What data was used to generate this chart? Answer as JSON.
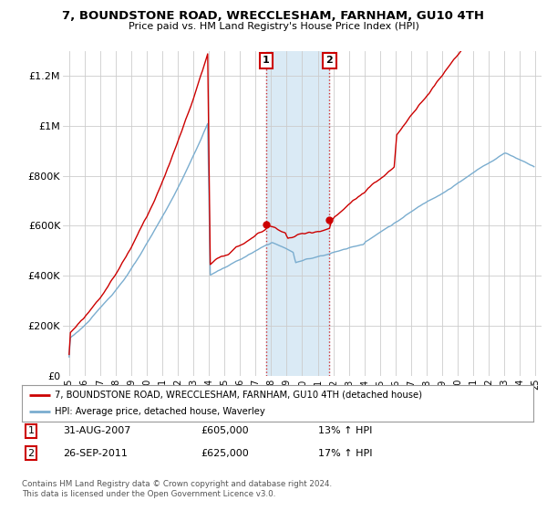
{
  "title": "7, BOUNDSTONE ROAD, WRECCLESHAM, FARNHAM, GU10 4TH",
  "subtitle": "Price paid vs. HM Land Registry's House Price Index (HPI)",
  "legend_line1": "7, BOUNDSTONE ROAD, WRECCLESHAM, FARNHAM, GU10 4TH (detached house)",
  "legend_line2": "HPI: Average price, detached house, Waverley",
  "purchase1_date": "31-AUG-2007",
  "purchase1_price": "£605,000",
  "purchase1_hpi": "13% ↑ HPI",
  "purchase2_date": "26-SEP-2011",
  "purchase2_price": "£625,000",
  "purchase2_hpi": "17% ↑ HPI",
  "purchase1_year": 2007.67,
  "purchase2_year": 2011.75,
  "red_color": "#cc0000",
  "blue_color": "#7aadcf",
  "shade_color": "#daeaf5",
  "background_color": "#ffffff",
  "grid_color": "#cccccc",
  "footer": "Contains HM Land Registry data © Crown copyright and database right 2024.\nThis data is licensed under the Open Government Licence v3.0.",
  "ylim": [
    0,
    1300000
  ],
  "xlim_start": 1994.6,
  "xlim_end": 2025.4,
  "yticks": [
    0,
    200000,
    400000,
    600000,
    800000,
    1000000,
    1200000
  ],
  "ytick_labels": [
    "£0",
    "£200K",
    "£400K",
    "£600K",
    "£800K",
    "£1M",
    "£1.2M"
  ]
}
